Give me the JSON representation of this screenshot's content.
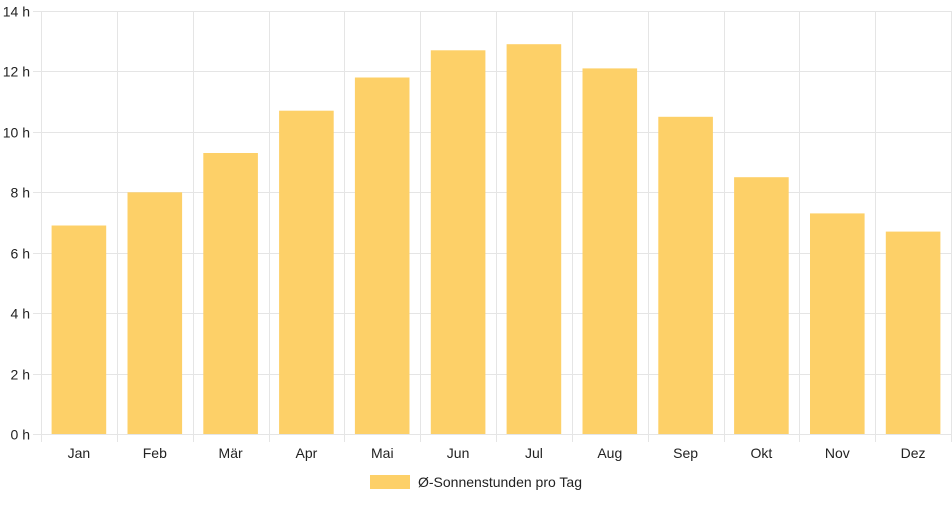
{
  "chart_data": {
    "type": "bar",
    "categories": [
      "Jan",
      "Feb",
      "Mär",
      "Apr",
      "Mai",
      "Jun",
      "Jul",
      "Aug",
      "Sep",
      "Okt",
      "Nov",
      "Dez"
    ],
    "series": [
      {
        "name": "Ø-Sonnenstunden pro Tag",
        "values": [
          6.9,
          8.0,
          9.3,
          10.7,
          11.8,
          12.7,
          12.9,
          12.1,
          10.5,
          8.5,
          7.3,
          6.7
        ],
        "color": "#fdd068"
      }
    ],
    "title": "",
    "xlabel": "",
    "ylabel": "",
    "ylim": [
      0,
      14
    ],
    "yticks": [
      0,
      2,
      4,
      6,
      8,
      10,
      12,
      14
    ],
    "ytick_suffix": " h",
    "grid": true,
    "legend_position": "bottom"
  },
  "colors": {
    "grid": "#e5e5e5",
    "bar": "#fdd068",
    "text": "#222222"
  }
}
